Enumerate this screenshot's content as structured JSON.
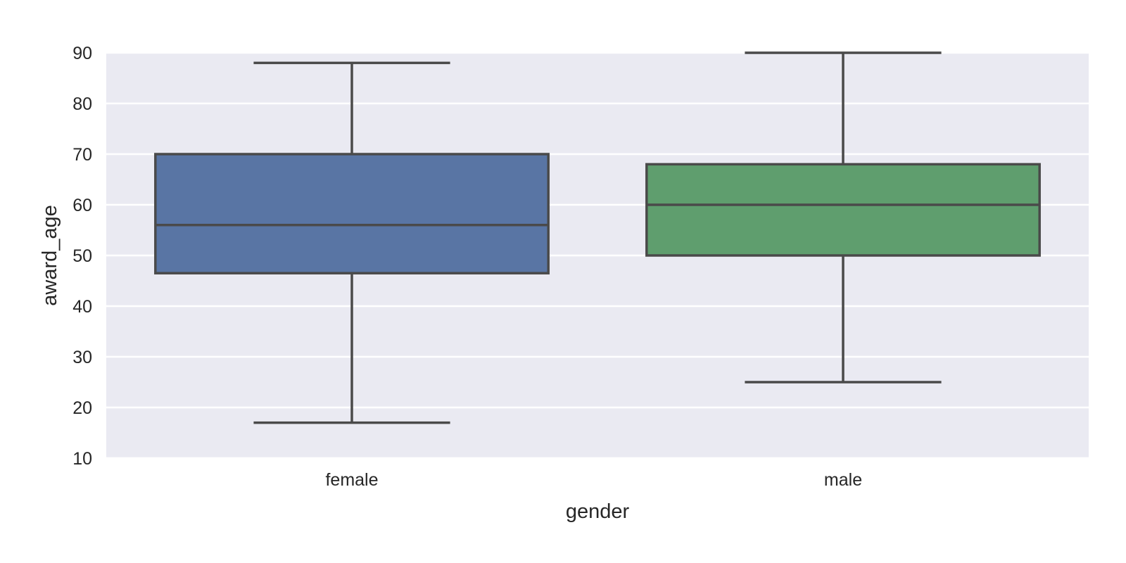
{
  "chart_data": {
    "type": "box",
    "xlabel": "gender",
    "ylabel": "award_age",
    "ylim": [
      10,
      90
    ],
    "yticks": [
      10,
      20,
      30,
      40,
      50,
      60,
      70,
      80,
      90
    ],
    "grid": true,
    "categories": [
      "female",
      "male"
    ],
    "boxes": [
      {
        "category": "female",
        "whisker_low": 17,
        "q1": 46.5,
        "median": 56,
        "q3": 70,
        "whisker_high": 88,
        "color": "#5975a4"
      },
      {
        "category": "male",
        "whisker_low": 25,
        "q1": 50,
        "median": 60,
        "q3": 68,
        "whisker_high": 90,
        "color": "#5f9e6e"
      }
    ],
    "colors": {
      "plot_background": "#eaeaf2",
      "grid": "#ffffff",
      "box_outline": "#4a4a4a",
      "text": "#262626"
    }
  }
}
